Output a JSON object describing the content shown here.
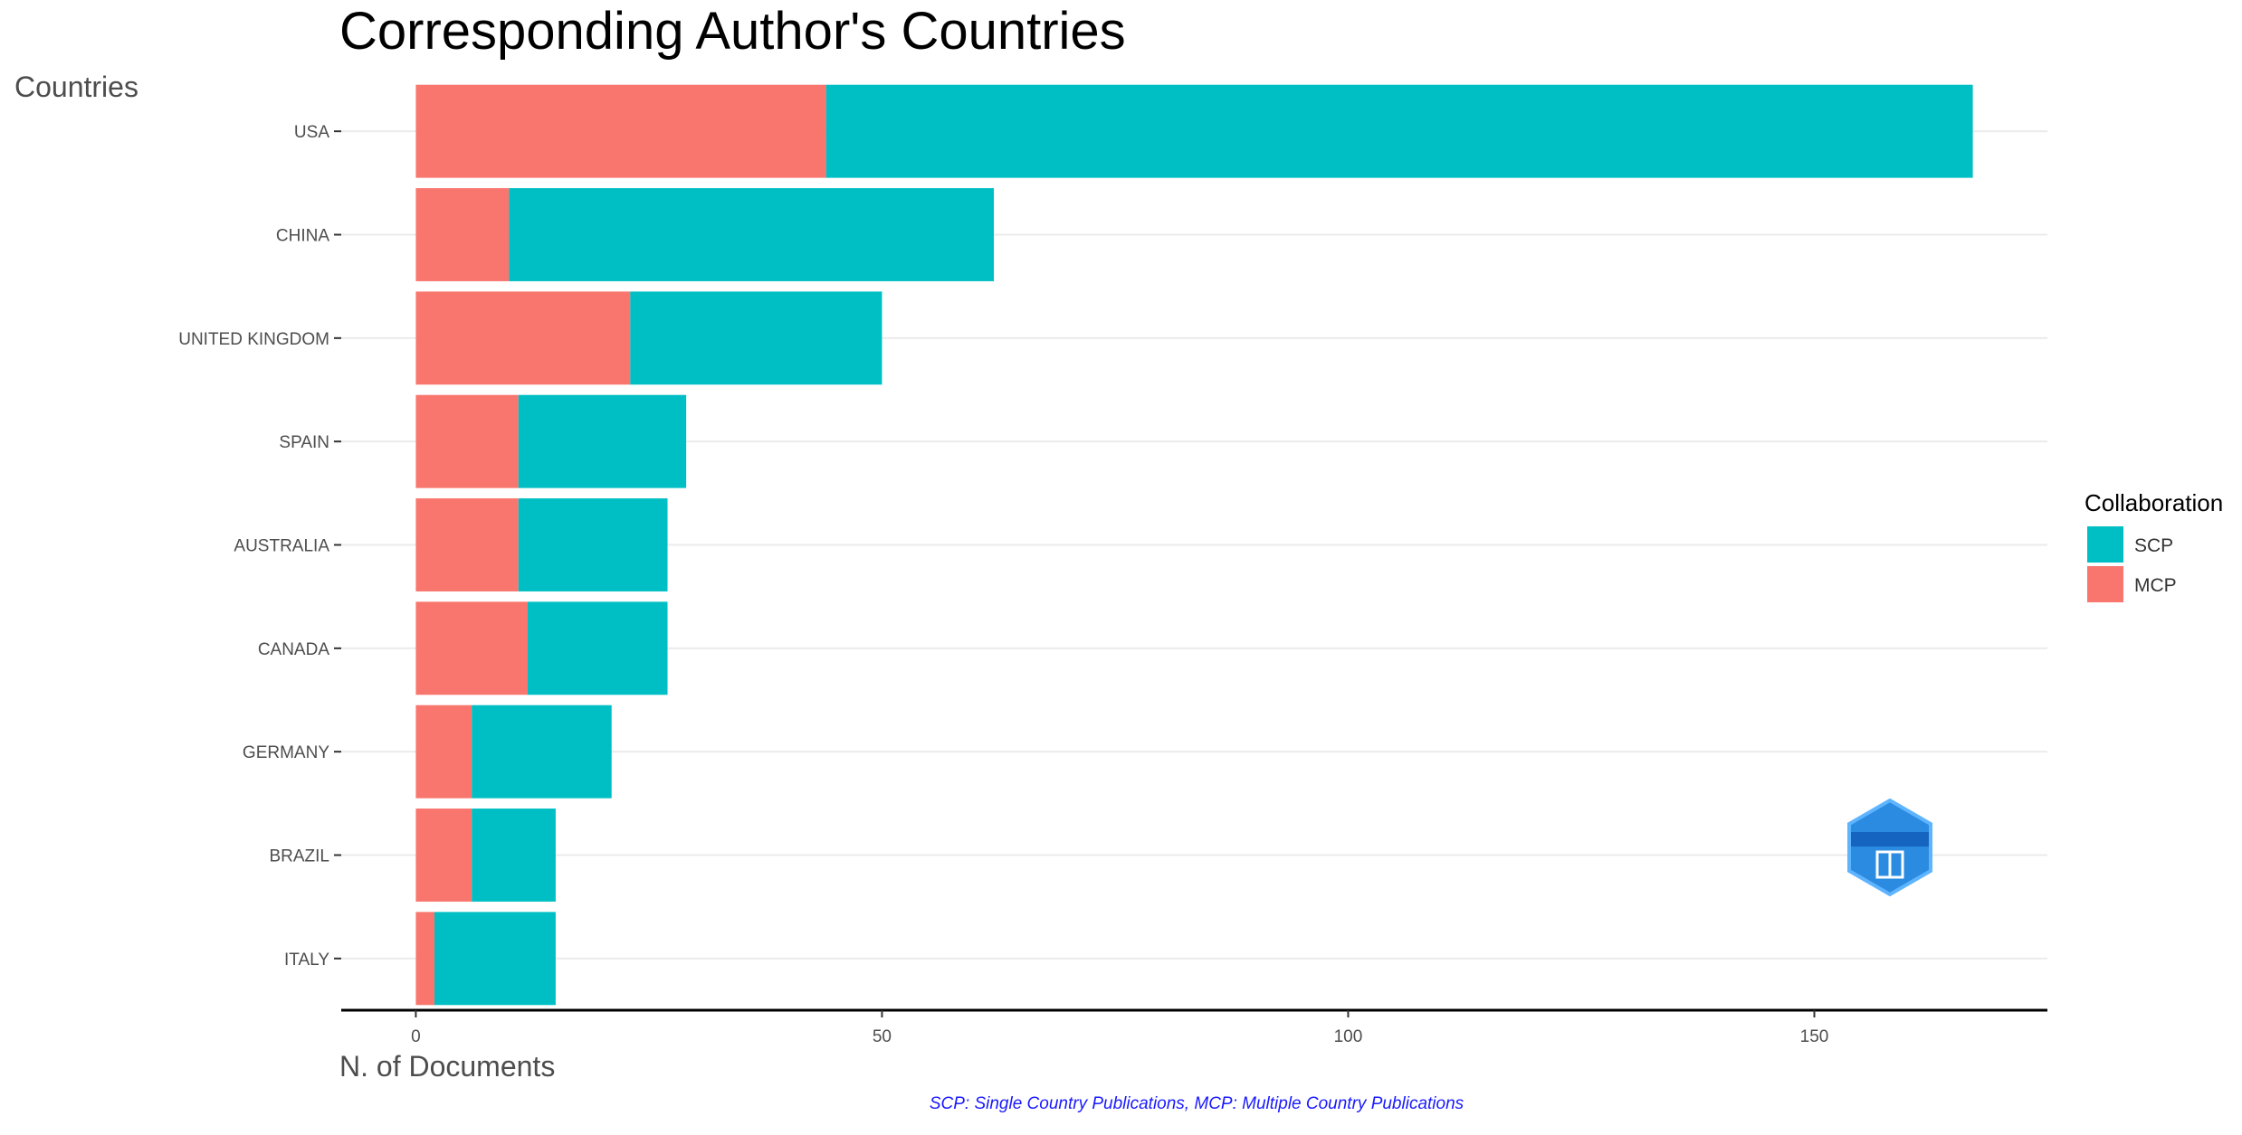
{
  "chart_data": {
    "type": "bar",
    "orientation": "horizontal",
    "stacked": true,
    "title": "Corresponding Author's Countries",
    "ylabel": "Countries",
    "xlabel": "N. of Documents",
    "caption": "SCP: Single Country Publications, MCP: Multiple Country Publications",
    "categories": [
      "USA",
      "CHINA",
      "UNITED KINGDOM",
      "SPAIN",
      "AUSTRALIA",
      "CANADA",
      "GERMANY",
      "BRAZIL",
      "ITALY"
    ],
    "series": [
      {
        "name": "MCP",
        "color": "#F8766D",
        "values": [
          44,
          10,
          23,
          11,
          11,
          12,
          6,
          6,
          2
        ]
      },
      {
        "name": "SCP",
        "color": "#00BFC4",
        "values": [
          123,
          52,
          27,
          18,
          16,
          15,
          15,
          9,
          13
        ]
      }
    ],
    "xlim": [
      -8,
      175
    ],
    "xticks": [
      0,
      50,
      100,
      150
    ],
    "legend": {
      "title": "Collaboration",
      "position": "right",
      "order": [
        "SCP",
        "MCP"
      ]
    },
    "grid": true
  },
  "logo": {
    "label": "bibliometrix"
  }
}
